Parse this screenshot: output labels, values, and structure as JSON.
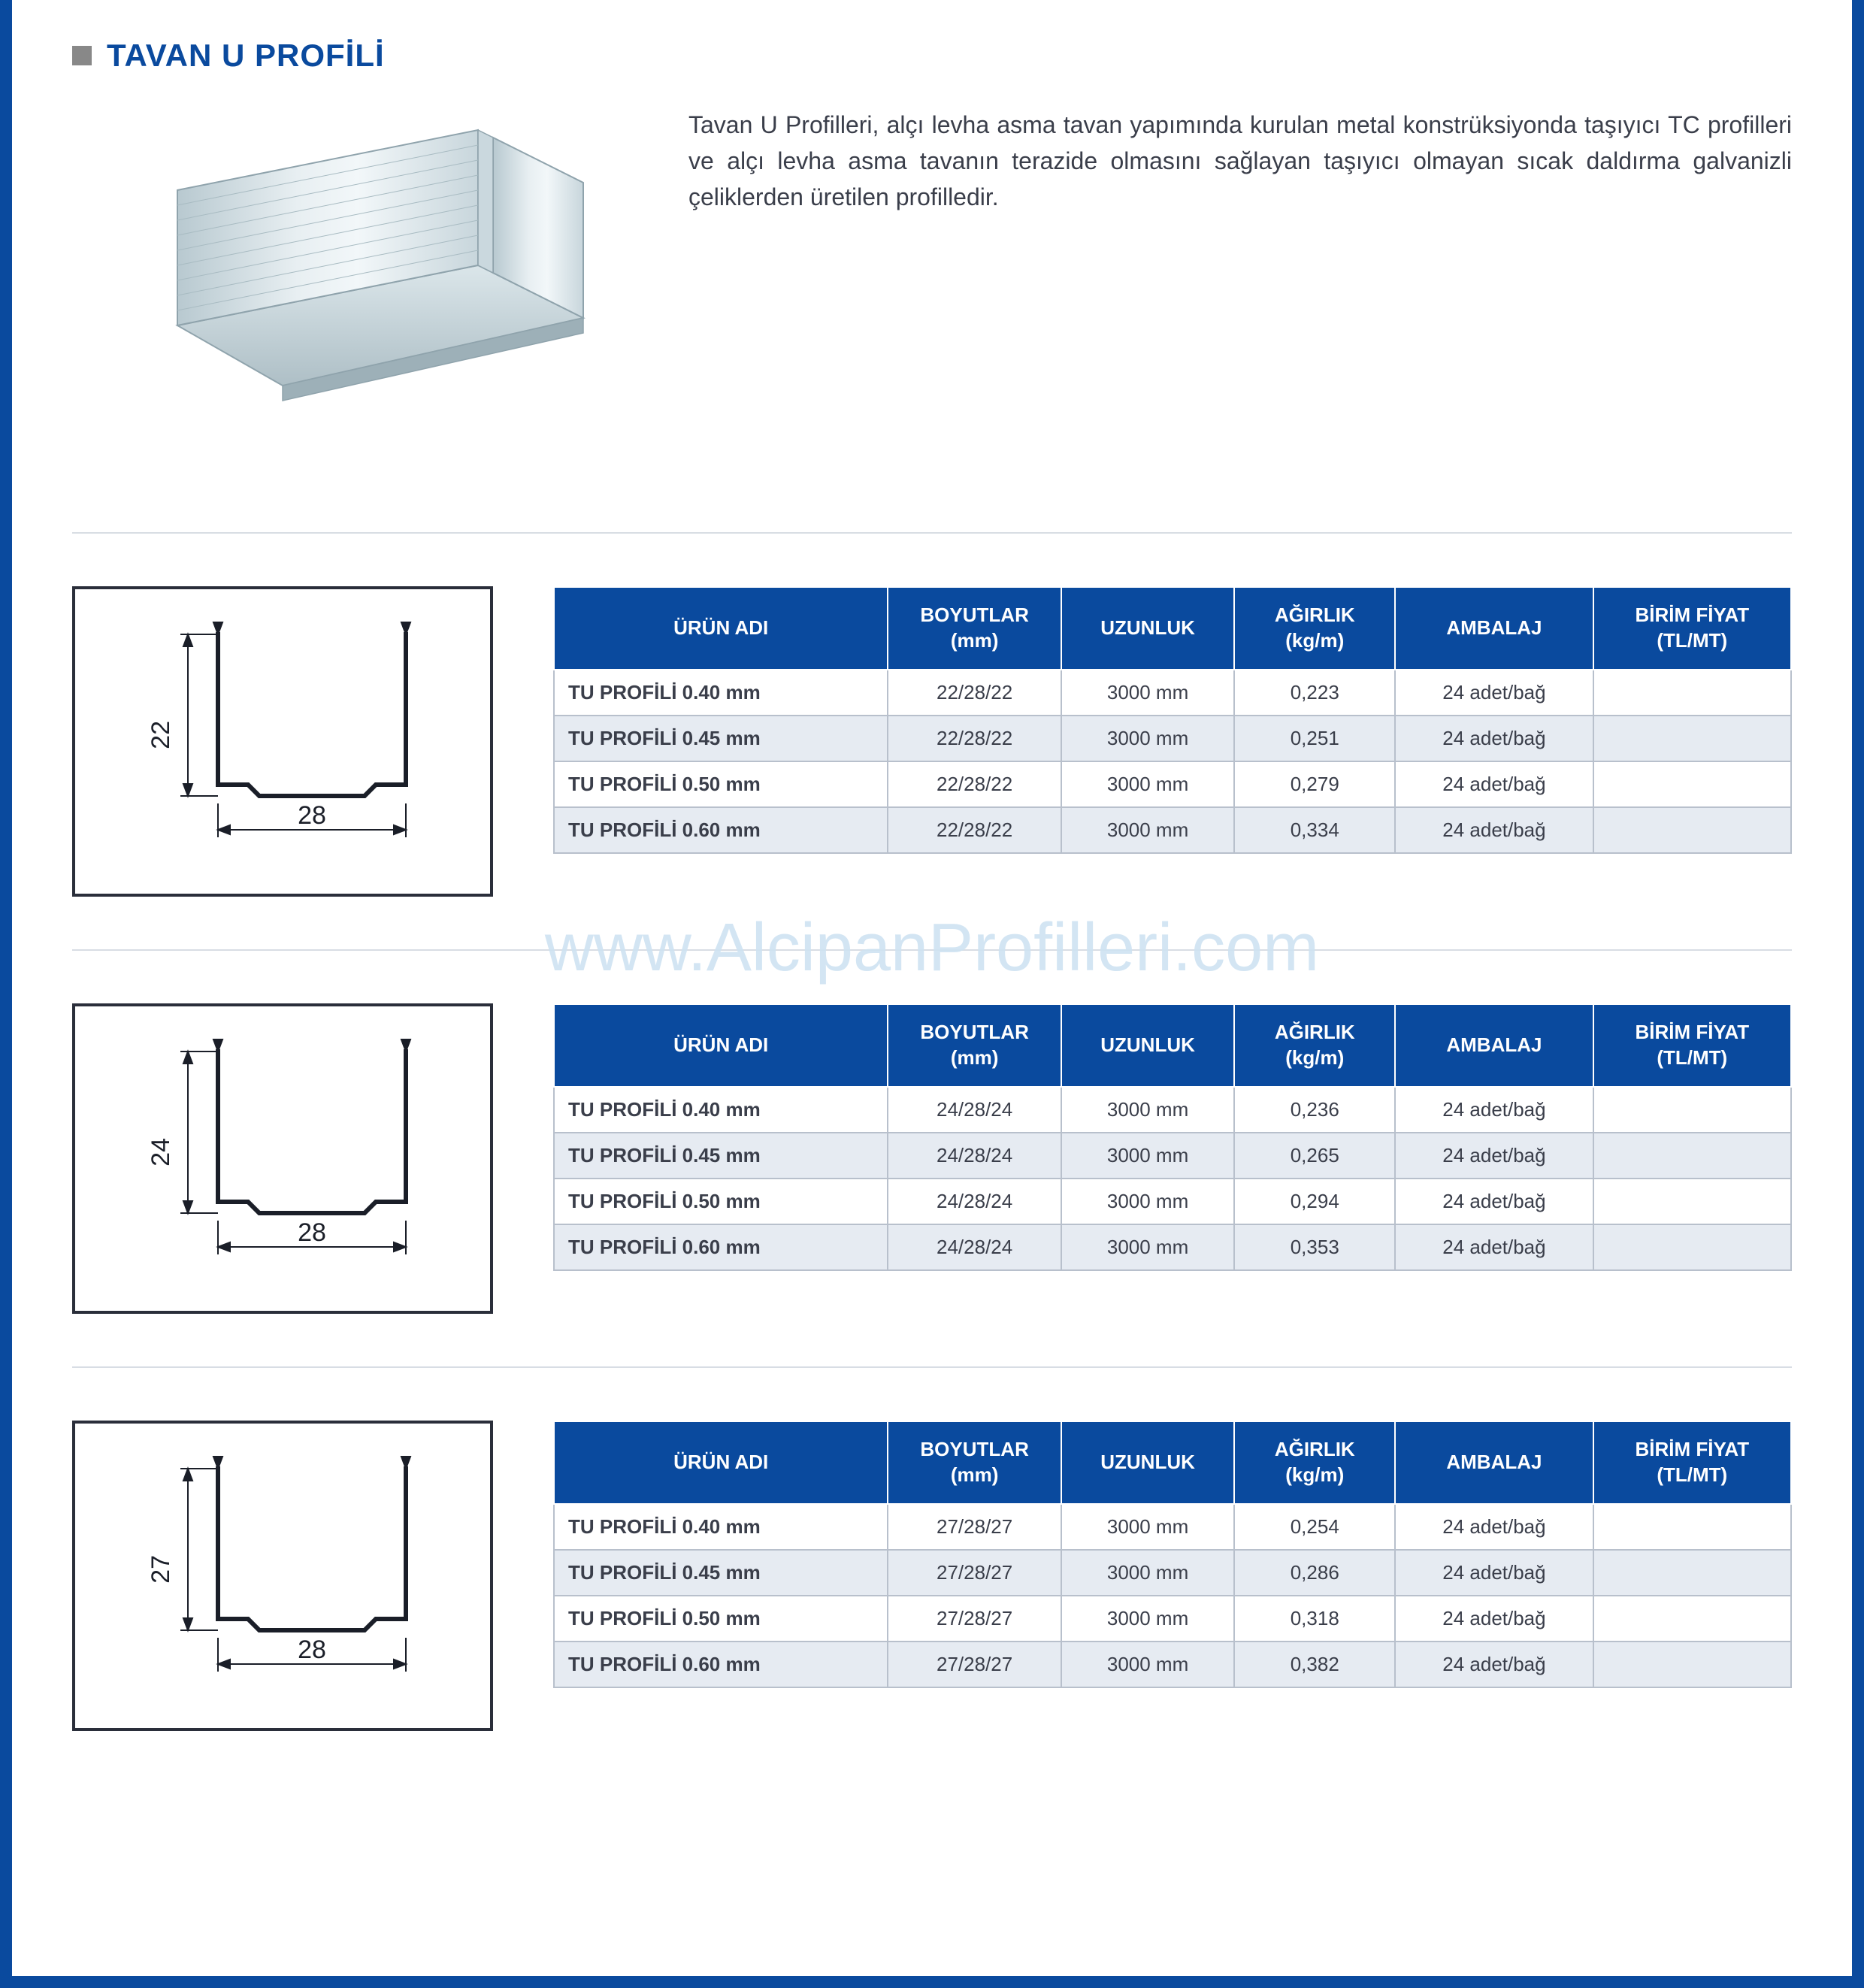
{
  "title": "TAVAN U PROFİLİ",
  "description": "Tavan U Profilleri, alçı levha asma tavan yapımında kurulan metal konstrüksiyonda taşıyıcı TC profilleri ve alçı levha asma tavanın terazide olmasını sağlayan taşıyıcı olmayan sıcak daldırma galvanizli çeliklerden üretilen profilledir.",
  "watermark": "www.AlcipanProfilleri.com",
  "columns": [
    "ÜRÜN ADI",
    "BOYUTLAR (mm)",
    "UZUNLUK",
    "AĞIRLIK (kg/m)",
    "AMBALAJ",
    "BİRİM FİYAT (TL/MT)"
  ],
  "colors": {
    "brand": "#0a4a9e",
    "band_even": "#e6ebf2",
    "watermark": "#cfe3f2",
    "border": "#b8c0cc",
    "text": "#3a3e4a"
  },
  "sections": [
    {
      "diagram": {
        "height_label": "22",
        "width_label": "28"
      },
      "rows": [
        {
          "name": "TU PROFİLİ 0.40 mm",
          "dims": "22/28/22",
          "len": "3000 mm",
          "weight": "0,223",
          "pack": "24 adet/bağ",
          "price": ""
        },
        {
          "name": "TU PROFİLİ 0.45 mm",
          "dims": "22/28/22",
          "len": "3000 mm",
          "weight": "0,251",
          "pack": "24 adet/bağ",
          "price": ""
        },
        {
          "name": "TU PROFİLİ 0.50 mm",
          "dims": "22/28/22",
          "len": "3000 mm",
          "weight": "0,279",
          "pack": "24 adet/bağ",
          "price": ""
        },
        {
          "name": "TU PROFİLİ 0.60 mm",
          "dims": "22/28/22",
          "len": "3000 mm",
          "weight": "0,334",
          "pack": "24 adet/bağ",
          "price": ""
        }
      ]
    },
    {
      "diagram": {
        "height_label": "24",
        "width_label": "28"
      },
      "rows": [
        {
          "name": "TU PROFİLİ 0.40 mm",
          "dims": "24/28/24",
          "len": "3000 mm",
          "weight": "0,236",
          "pack": "24 adet/bağ",
          "price": ""
        },
        {
          "name": "TU PROFİLİ 0.45 mm",
          "dims": "24/28/24",
          "len": "3000 mm",
          "weight": "0,265",
          "pack": "24 adet/bağ",
          "price": ""
        },
        {
          "name": "TU PROFİLİ 0.50 mm",
          "dims": "24/28/24",
          "len": "3000 mm",
          "weight": "0,294",
          "pack": "24 adet/bağ",
          "price": ""
        },
        {
          "name": "TU PROFİLİ 0.60 mm",
          "dims": "24/28/24",
          "len": "3000 mm",
          "weight": "0,353",
          "pack": "24 adet/bağ",
          "price": ""
        }
      ]
    },
    {
      "diagram": {
        "height_label": "27",
        "width_label": "28"
      },
      "rows": [
        {
          "name": "TU PROFİLİ 0.40 mm",
          "dims": "27/28/27",
          "len": "3000 mm",
          "weight": "0,254",
          "pack": "24 adet/bağ",
          "price": ""
        },
        {
          "name": "TU PROFİLİ 0.45 mm",
          "dims": "27/28/27",
          "len": "3000 mm",
          "weight": "0,286",
          "pack": "24 adet/bağ",
          "price": ""
        },
        {
          "name": "TU PROFİLİ 0.50 mm",
          "dims": "27/28/27",
          "len": "3000 mm",
          "weight": "0,318",
          "pack": "24 adet/bağ",
          "price": ""
        },
        {
          "name": "TU PROFİLİ 0.60 mm",
          "dims": "27/28/27",
          "len": "3000 mm",
          "weight": "0,382",
          "pack": "24 adet/bağ",
          "price": ""
        }
      ]
    }
  ]
}
